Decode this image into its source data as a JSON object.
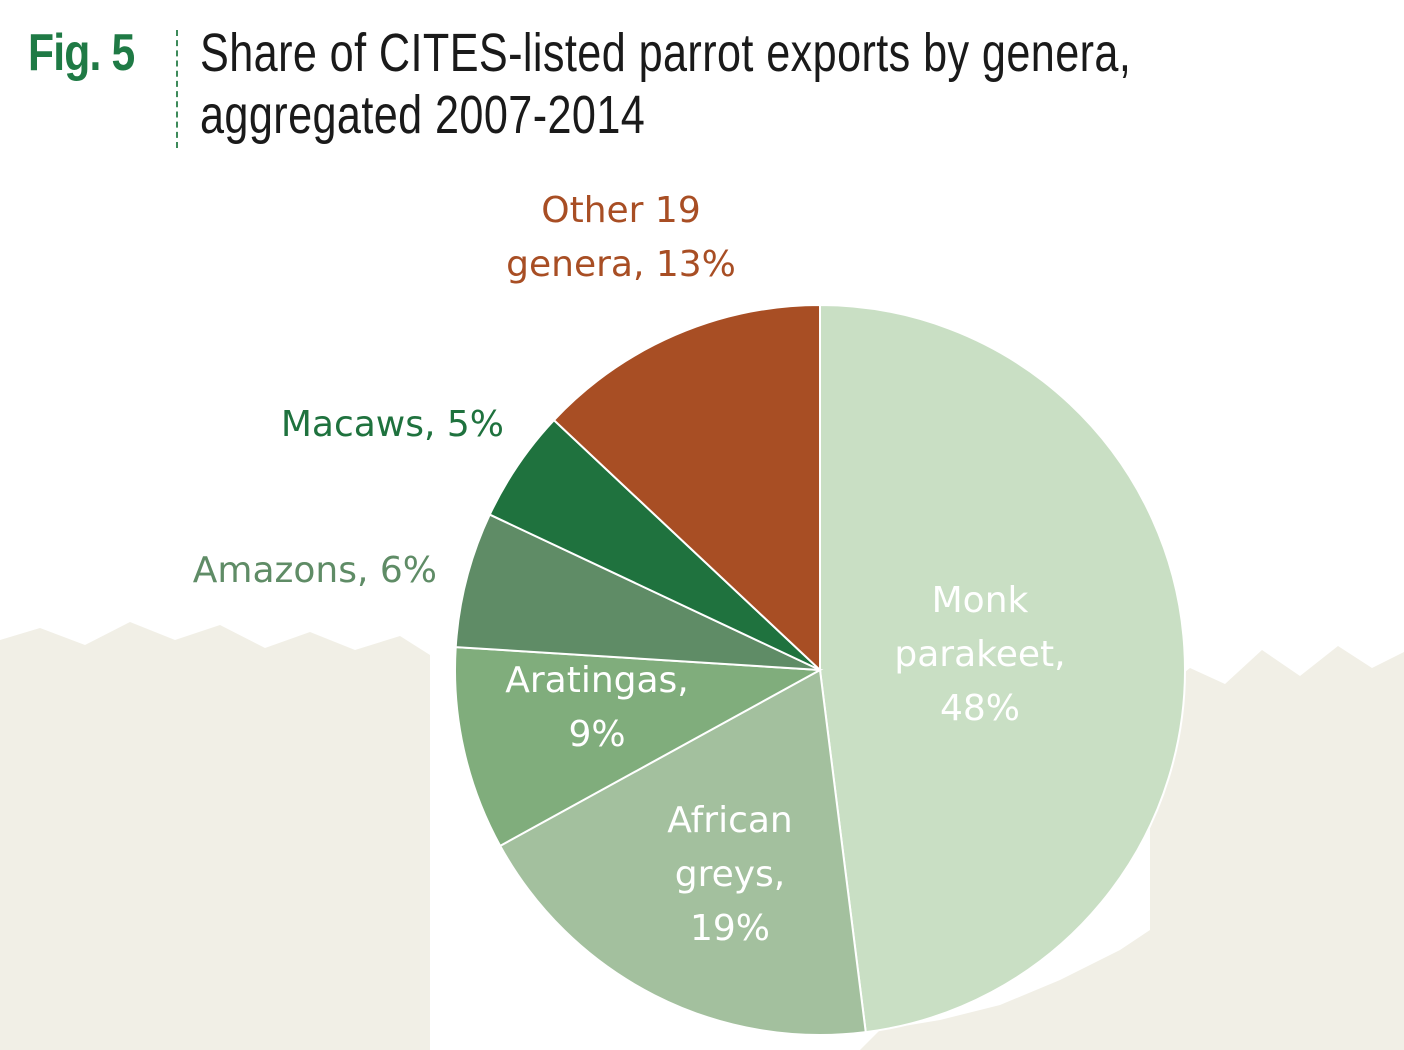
{
  "header": {
    "fig_label": "Fig. 5",
    "title": "Share of CITES-listed parrot exports by genera, aggregated 2007-2014"
  },
  "chart_data": {
    "type": "pie",
    "slices": [
      {
        "label": "Monk parakeet",
        "value": 48,
        "color": "#c9dfc4",
        "label_color": "#ffffff",
        "label_lines": [
          "Monk",
          "parakeet,",
          "48%"
        ]
      },
      {
        "label": "African greys",
        "value": 19,
        "color": "#a3c09e",
        "label_color": "#ffffff",
        "label_lines": [
          "African",
          "greys,",
          "19%"
        ]
      },
      {
        "label": "Aratingas",
        "value": 9,
        "color": "#80ad7c",
        "label_color": "#ffffff",
        "label_lines": [
          "Aratingas,",
          "9%"
        ]
      },
      {
        "label": "Amazons",
        "value": 6,
        "color": "#5f8c66",
        "label_color": "#5f8c66",
        "label_lines": [
          "Amazons, 6%"
        ]
      },
      {
        "label": "Macaws",
        "value": 5,
        "color": "#1f723e",
        "label_color": "#1f723e",
        "label_lines": [
          "Macaws, 5%"
        ]
      },
      {
        "label": "Other 19 genera",
        "value": 13,
        "color": "#a84e24",
        "label_color": "#a84e24",
        "label_lines": [
          "Other 19",
          "genera, 13%"
        ]
      }
    ]
  }
}
